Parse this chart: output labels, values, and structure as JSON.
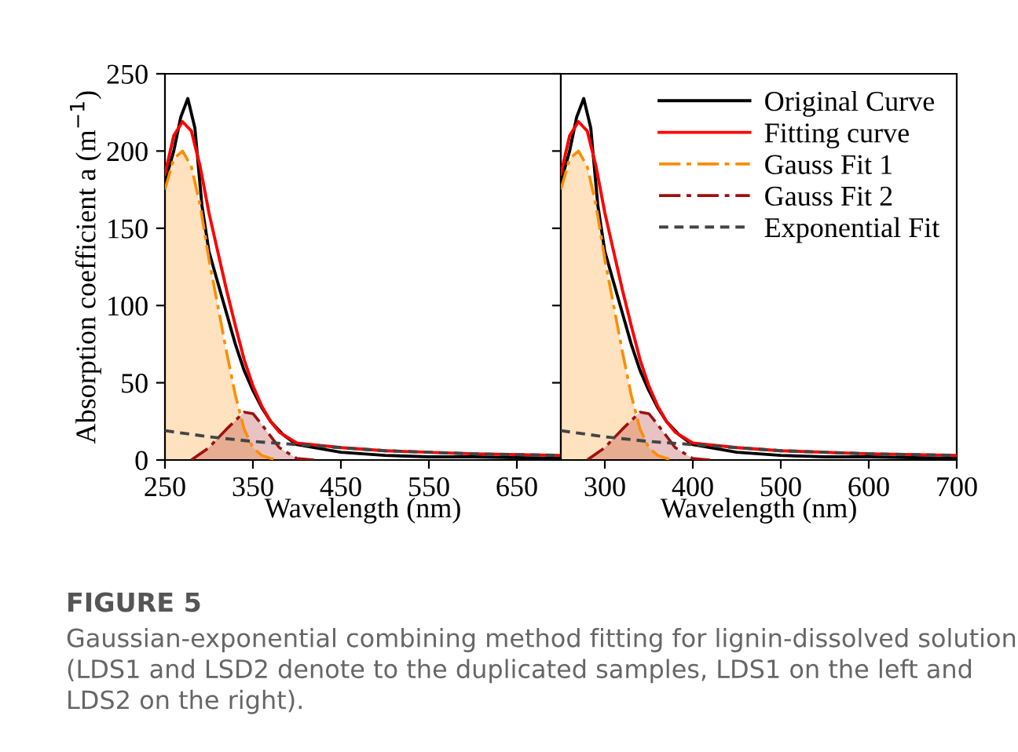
{
  "chart_data": [
    {
      "type": "line",
      "ylabel": "Absorption coefficient a (m$^{−1}$)",
      "xlabel": "Wavelength (nm)",
      "xlim": [
        250,
        700
      ],
      "xticks": [
        250,
        350,
        450,
        550,
        650
      ],
      "ylim": [
        0,
        250
      ],
      "yticks": [
        0,
        50,
        100,
        150,
        200,
        250
      ],
      "grid": false,
      "annotations": [
        "FIGURE 5",
        "Gaussian-exponential combining method fitting for lignin-dissolved solution (LDS1 and LSD2 denote to the duplicated samples, LDS1 on the left and LDS2 on the right)."
      ],
      "series": [
        {
          "color": "#000000",
          "line_style": "solid",
          "x": [
            250,
            260,
            268,
            276,
            284,
            292,
            300,
            310,
            320,
            330,
            340,
            350,
            360,
            370,
            385,
            400,
            450,
            500,
            550,
            600,
            700
          ],
          "values": [
            180,
            200,
            222,
            234,
            215,
            165,
            135,
            115,
            95,
            75,
            58,
            45,
            34,
            25,
            16,
            10,
            5,
            3,
            2,
            2,
            1
          ]
        },
        {
          "color": "#ff0000",
          "line_style": "solid",
          "x": [
            250,
            260,
            270,
            280,
            290,
            300,
            310,
            320,
            330,
            340,
            350,
            360,
            370,
            380,
            400,
            450,
            500,
            600,
            700
          ],
          "values": [
            185,
            210,
            219,
            213,
            190,
            160,
            135,
            110,
            87,
            65,
            48,
            35,
            25,
            18,
            11,
            8,
            6,
            4,
            3
          ]
        },
        {
          "type": "area",
          "color": "#ff8c00",
          "line_style": "dashdot",
          "x": [
            250,
            260,
            270,
            280,
            290,
            300,
            310,
            320,
            330,
            340,
            350,
            360,
            370,
            380
          ],
          "values": [
            175,
            195,
            200,
            190,
            165,
            130,
            100,
            70,
            42,
            20,
            8,
            3,
            1,
            0
          ]
        },
        {
          "type": "area",
          "color": "#a01010",
          "line_style": "dashdot",
          "x": [
            280,
            300,
            320,
            340,
            350,
            360,
            380,
            400,
            420
          ],
          "values": [
            0,
            8,
            20,
            31,
            30,
            23,
            8,
            1,
            0
          ]
        },
        {
          "color": "#444444",
          "line_style": "dashed",
          "x": [
            250,
            300,
            350,
            400,
            450,
            500,
            600,
            700
          ],
          "values": [
            19,
            15,
            12,
            10,
            8,
            6,
            4,
            3
          ]
        }
      ]
    },
    {
      "type": "line",
      "xlabel": "Wavelength (nm)",
      "xlim": [
        250,
        700
      ],
      "xticks": [
        300,
        400,
        500,
        600,
        700
      ],
      "ylim": [
        0,
        250
      ],
      "yticks": [
        {
          "value": 0,
          "label": null
        },
        {
          "value": 50,
          "label": null
        },
        {
          "value": 100,
          "label": null
        },
        {
          "value": 150,
          "label": null
        },
        {
          "value": 200,
          "label": null
        },
        {
          "value": 250,
          "label": null
        }
      ],
      "tick_labels": "x",
      "grid": false,
      "legend": "top right",
      "series": [
        {
          "name": "Original Curve",
          "color": "#000000",
          "line_style": "solid",
          "x": [
            250,
            260,
            268,
            276,
            284,
            292,
            300,
            310,
            320,
            330,
            340,
            350,
            360,
            370,
            385,
            400,
            450,
            500,
            550,
            600,
            700
          ],
          "values": [
            180,
            200,
            222,
            234,
            215,
            165,
            135,
            115,
            95,
            75,
            58,
            45,
            34,
            25,
            16,
            10,
            5,
            3,
            2,
            2,
            1
          ]
        },
        {
          "name": "Fitting curve",
          "color": "#ff0000",
          "line_style": "solid",
          "x": [
            250,
            260,
            270,
            280,
            290,
            300,
            310,
            320,
            330,
            340,
            350,
            360,
            370,
            380,
            400,
            450,
            500,
            600,
            700
          ],
          "values": [
            185,
            210,
            219,
            213,
            190,
            160,
            135,
            110,
            87,
            65,
            48,
            35,
            25,
            18,
            11,
            8,
            6,
            4,
            3
          ]
        },
        {
          "name": "Gauss Fit 1",
          "type": "area",
          "color": "#ff8c00",
          "line_style": "dashdot",
          "x": [
            250,
            260,
            270,
            280,
            290,
            300,
            310,
            320,
            330,
            340,
            350,
            360,
            370,
            380
          ],
          "values": [
            175,
            195,
            200,
            190,
            165,
            130,
            100,
            70,
            42,
            20,
            8,
            3,
            1,
            0
          ]
        },
        {
          "name": "Gauss Fit 2",
          "type": "area",
          "color": "#a01010",
          "line_style": "dashdot",
          "x": [
            280,
            300,
            320,
            340,
            350,
            360,
            380,
            400,
            420
          ],
          "values": [
            0,
            8,
            20,
            31,
            30,
            23,
            8,
            1,
            0
          ]
        },
        {
          "name": "Exponential Fit",
          "color": "#444444",
          "line_style": "dashed",
          "x": [
            250,
            300,
            350,
            400,
            450,
            500,
            600,
            700
          ],
          "values": [
            19,
            15,
            12,
            10,
            8,
            6,
            4,
            3
          ]
        }
      ]
    }
  ]
}
